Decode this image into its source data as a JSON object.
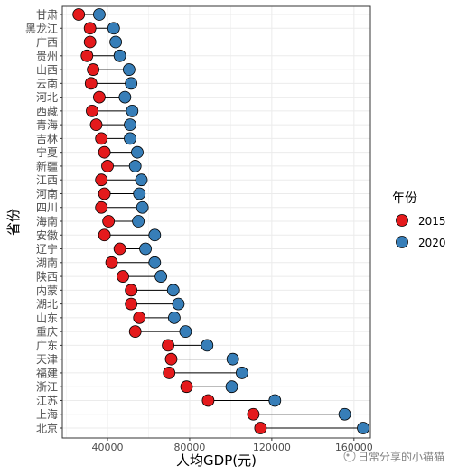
{
  "chart_data": {
    "type": "dumbbell",
    "xlabel": "人均GDP(元)",
    "ylabel": "省份",
    "xlim": [
      18000,
      168000
    ],
    "xticks": [
      40000,
      80000,
      120000,
      160000
    ],
    "grid": true,
    "legend": {
      "title": "年份",
      "position": "right",
      "entries": [
        {
          "label": "2015",
          "color": "#E41A1C"
        },
        {
          "label": "2020",
          "color": "#377EB8"
        }
      ]
    },
    "provinces": [
      "甘肃",
      "黑龙江",
      "广西",
      "贵州",
      "山西",
      "云南",
      "河北",
      "西藏",
      "青海",
      "吉林",
      "宁夏",
      "新疆",
      "江西",
      "河南",
      "四川",
      "海南",
      "安徽",
      "辽宁",
      "湖南",
      "陕西",
      "内蒙",
      "湖北",
      "山东",
      "重庆",
      "广东",
      "天津",
      "福建",
      "浙江",
      "江苏",
      "上海",
      "北京"
    ],
    "series": [
      {
        "name": "2015",
        "color": "#E41A1C",
        "values": [
          26000,
          31500,
          31500,
          30000,
          33000,
          32000,
          36000,
          32500,
          34500,
          37000,
          38500,
          40000,
          37000,
          38500,
          37000,
          40500,
          38500,
          46000,
          42000,
          47500,
          51500,
          51500,
          55500,
          53500,
          69500,
          71000,
          70000,
          78500,
          89000,
          111000,
          114500
        ]
      },
      {
        "name": "2020",
        "color": "#377EB8",
        "values": [
          36000,
          43000,
          44000,
          46000,
          50500,
          51500,
          48500,
          52000,
          51000,
          51000,
          54500,
          53500,
          56500,
          55500,
          57000,
          55000,
          63000,
          58500,
          63000,
          66000,
          72000,
          74500,
          72500,
          78000,
          88500,
          101000,
          105500,
          100500,
          121500,
          155500,
          164500
        ]
      }
    ]
  },
  "watermark": {
    "text": "日常分享的小猫猫"
  }
}
